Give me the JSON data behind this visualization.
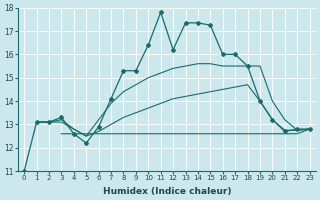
{
  "xlabel": "Humidex (Indice chaleur)",
  "background_color": "#cce8ed",
  "line_color": "#1a6b6b",
  "xlim": [
    -0.5,
    23.5
  ],
  "ylim": [
    11,
    18
  ],
  "xticks": [
    0,
    1,
    2,
    3,
    4,
    5,
    6,
    7,
    8,
    9,
    10,
    11,
    12,
    13,
    14,
    15,
    16,
    17,
    18,
    19,
    20,
    21,
    22,
    23
  ],
  "yticks": [
    11,
    12,
    13,
    14,
    15,
    16,
    17,
    18
  ],
  "series_main": {
    "x": [
      0,
      1,
      2,
      3,
      4,
      5,
      6,
      7,
      8,
      9,
      10,
      11,
      12,
      13,
      14,
      15,
      16,
      17,
      18,
      19,
      20,
      21,
      22,
      23
    ],
    "y": [
      11,
      13.1,
      13.1,
      13.3,
      12.6,
      12.2,
      12.9,
      14.1,
      15.3,
      15.3,
      16.4,
      17.8,
      16.2,
      17.35,
      17.35,
      17.25,
      16.0,
      16.0,
      15.5,
      14.0,
      13.2,
      12.7,
      12.8,
      12.8
    ]
  },
  "series_flat": {
    "x": [
      3,
      4,
      5,
      6,
      7,
      8,
      9,
      10,
      11,
      12,
      13,
      14,
      15,
      16,
      17,
      18,
      19,
      20,
      21,
      22,
      23
    ],
    "y": [
      12.6,
      12.6,
      12.6,
      12.6,
      12.6,
      12.6,
      12.6,
      12.6,
      12.6,
      12.6,
      12.6,
      12.6,
      12.6,
      12.6,
      12.6,
      12.6,
      12.6,
      12.6,
      12.6,
      12.6,
      12.8
    ]
  },
  "series_mid": {
    "x": [
      1,
      2,
      3,
      4,
      5,
      6,
      7,
      8,
      9,
      10,
      11,
      12,
      13,
      14,
      15,
      16,
      17,
      18,
      19,
      20,
      21,
      22,
      23
    ],
    "y": [
      13.1,
      13.1,
      13.1,
      12.8,
      12.5,
      12.7,
      13.0,
      13.3,
      13.5,
      13.7,
      13.9,
      14.1,
      14.2,
      14.3,
      14.4,
      14.5,
      14.6,
      14.7,
      14.0,
      13.2,
      12.75,
      12.75,
      12.8
    ]
  },
  "series_high": {
    "x": [
      1,
      2,
      3,
      4,
      5,
      6,
      7,
      8,
      9,
      10,
      11,
      12,
      13,
      14,
      15,
      16,
      17,
      18,
      19,
      20,
      21,
      22,
      23
    ],
    "y": [
      13.1,
      13.1,
      13.2,
      12.8,
      12.5,
      13.2,
      13.9,
      14.4,
      14.7,
      15.0,
      15.2,
      15.4,
      15.5,
      15.6,
      15.6,
      15.5,
      15.5,
      15.5,
      15.5,
      14.0,
      13.2,
      12.75,
      12.8
    ]
  }
}
